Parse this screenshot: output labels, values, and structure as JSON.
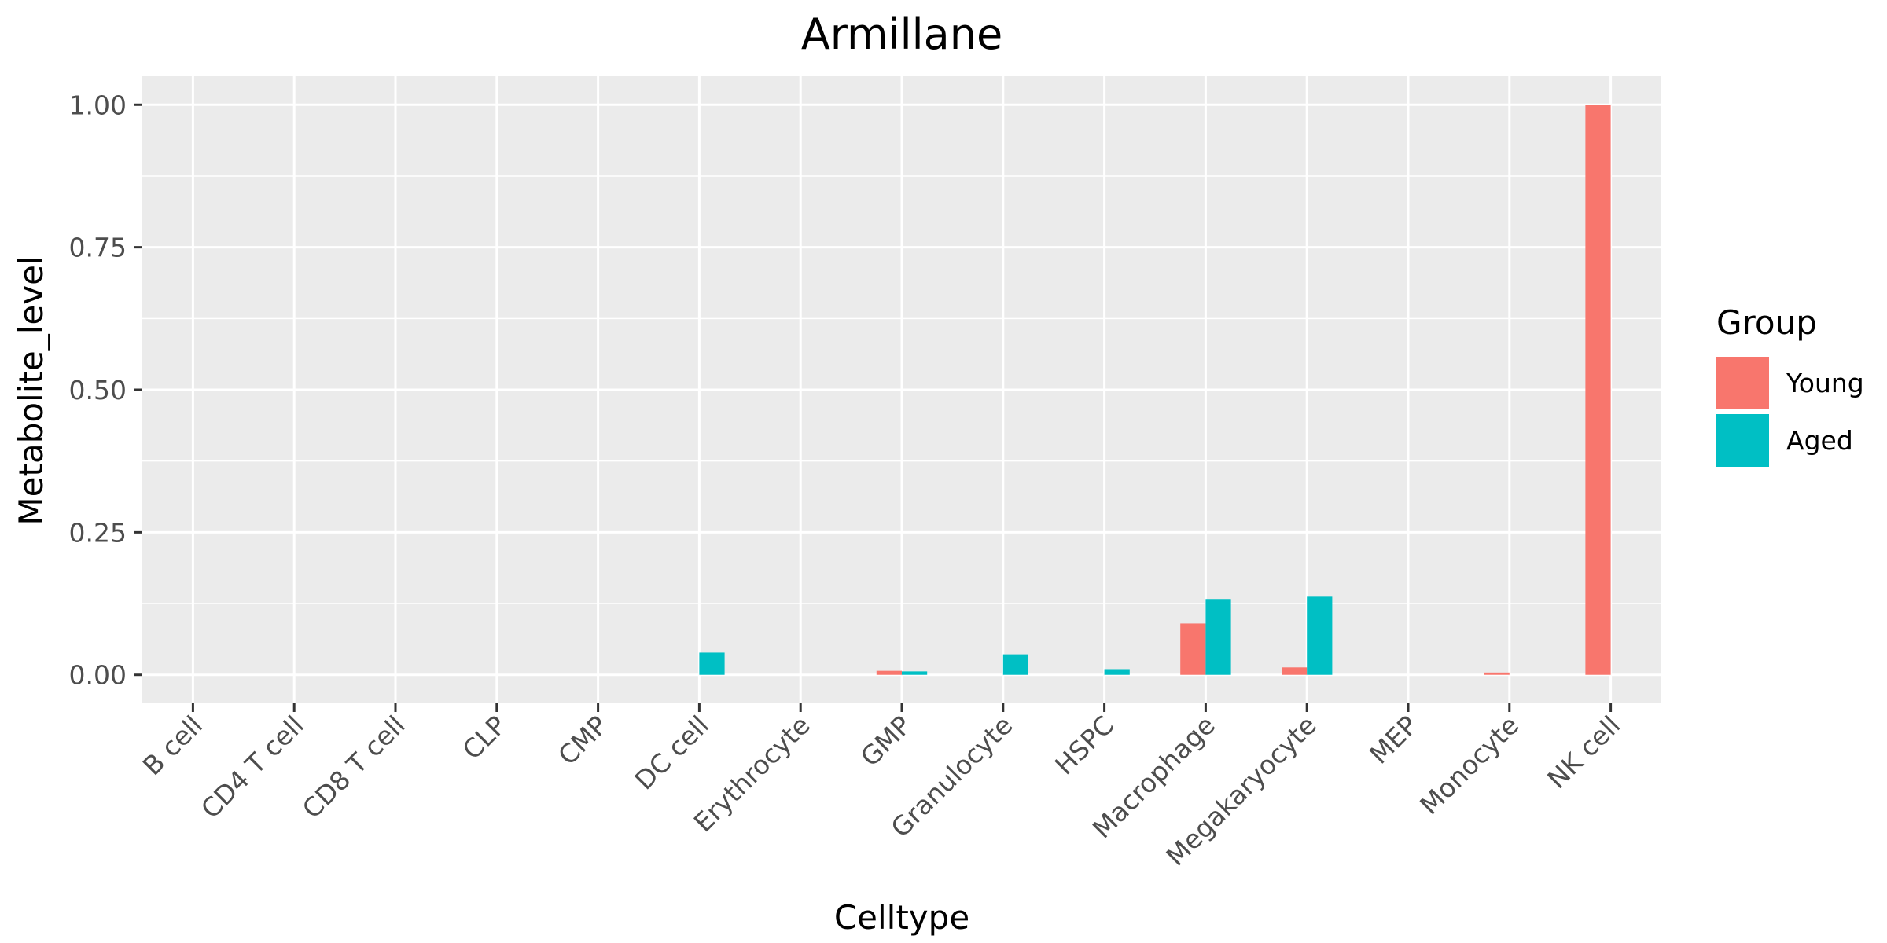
{
  "chart_data": {
    "type": "bar",
    "title": "Armillane",
    "xlabel": "Celltype",
    "ylabel": "Metabolite_level",
    "categories": [
      "B cell",
      "CD4 T cell",
      "CD8 T cell",
      "CLP",
      "CMP",
      "DC cell",
      "Erythrocyte",
      "GMP",
      "Granulocyte",
      "HSPC",
      "Macrophage",
      "Megakaryocyte",
      "MEP",
      "Monocyte",
      "NK cell"
    ],
    "series": [
      {
        "name": "Young",
        "color": "#F8766D",
        "values": [
          0,
          0,
          0,
          0,
          0,
          0,
          0,
          0.007,
          0,
          0,
          0.09,
          0.013,
          0,
          0.004,
          1.0
        ]
      },
      {
        "name": "Aged",
        "color": "#00BFC4",
        "values": [
          0,
          0,
          0,
          0,
          0,
          0.039,
          0,
          0.006,
          0.036,
          0.01,
          0.133,
          0.137,
          0,
          0,
          0
        ]
      }
    ],
    "ylim": [
      -0.05,
      1.05
    ],
    "yticks": [
      0,
      0.25,
      0.5,
      0.75,
      1.0
    ],
    "ytick_labels": [
      "0.00",
      "0.25",
      "0.50",
      "0.75",
      "1.00"
    ],
    "grid": true,
    "legend": {
      "title": "Group",
      "position": "right"
    }
  }
}
